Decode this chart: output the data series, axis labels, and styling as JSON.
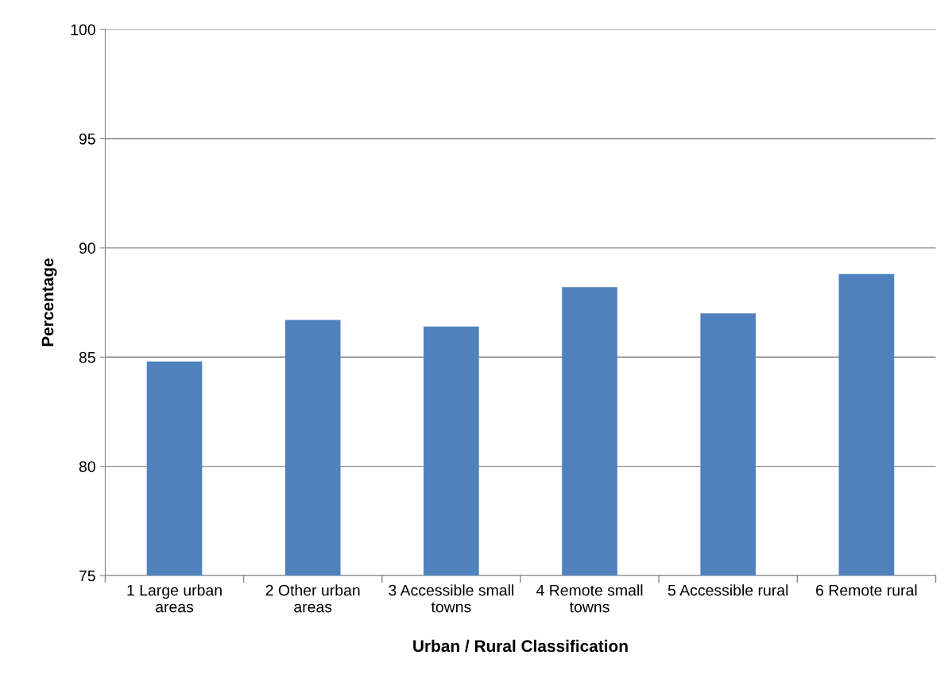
{
  "chart_data": {
    "type": "bar",
    "xlabel": "Urban / Rural Classification",
    "ylabel": "Percentage",
    "categories": [
      "1 Large urban\nareas",
      "2 Other urban\nareas",
      "3 Accessible small\ntowns",
      "4 Remote small\ntowns",
      "5 Accessible rural",
      "6 Remote rural"
    ],
    "values": [
      84.8,
      86.7,
      86.4,
      88.2,
      87.0,
      88.8
    ],
    "color": "#4f81bd",
    "ylim": [
      75,
      100
    ],
    "yticks": [
      75,
      80,
      85,
      90,
      95,
      100
    ],
    "grid": "y",
    "legend": false
  }
}
